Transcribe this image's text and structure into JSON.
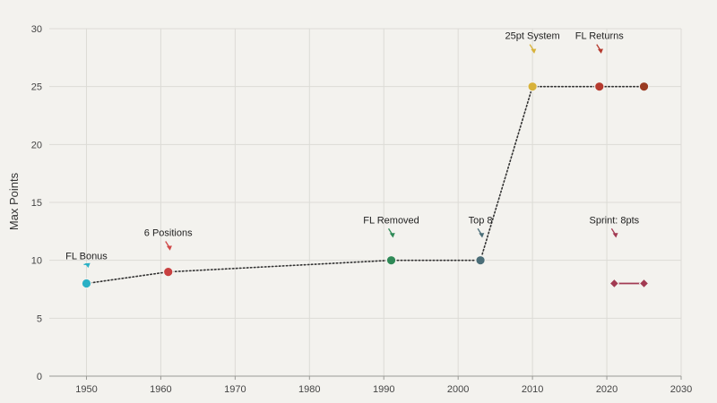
{
  "chart_data": {
    "type": "line",
    "xlabel": "",
    "ylabel": "Max Points",
    "xlim": [
      1945,
      2030
    ],
    "ylim": [
      0,
      30
    ],
    "xticks": [
      1950,
      1960,
      1970,
      1980,
      1990,
      2000,
      2010,
      2020,
      2030
    ],
    "yticks": [
      0,
      5,
      10,
      15,
      20,
      25,
      30
    ],
    "grid": true,
    "legend": "none",
    "series": [
      {
        "line_style": "dotted",
        "line_color": "#333333",
        "marker": "circle",
        "points": [
          {
            "x": 1950,
            "y": 8,
            "color": "#2ab0c5"
          },
          {
            "x": 1961,
            "y": 9,
            "color": "#c84040"
          },
          {
            "x": 1991,
            "y": 10,
            "color": "#2f8a57"
          },
          {
            "x": 2003,
            "y": 10,
            "color": "#4b6e78"
          },
          {
            "x": 2010,
            "y": 25,
            "color": "#d8b23a"
          },
          {
            "x": 2019,
            "y": 25,
            "color": "#b53a2e"
          },
          {
            "x": 2025,
            "y": 25,
            "color": "#9a3b22"
          }
        ]
      },
      {
        "line_style": "solid",
        "line_color": "#a23a52",
        "marker": "diamond",
        "points": [
          {
            "x": 2021,
            "y": 8,
            "color": "#a23a52"
          },
          {
            "x": 2025,
            "y": 8,
            "color": "#a23a52"
          }
        ]
      }
    ],
    "annotations": [
      {
        "text": "FL Bonus",
        "x": 1950,
        "y": 10.1,
        "arrow_to_y": 9.5,
        "color": "#2ab0c5"
      },
      {
        "text": "6 Positions",
        "x": 1961,
        "y": 12.1,
        "arrow_to_y": 11.0,
        "color": "#d04848"
      },
      {
        "text": "FL Removed",
        "x": 1991,
        "y": 13.2,
        "arrow_to_y": 12.1,
        "color": "#2f8a57"
      },
      {
        "text": "Top 8",
        "x": 2003,
        "y": 13.2,
        "arrow_to_y": 12.1,
        "color": "#4b6e78"
      },
      {
        "text": "25pt System",
        "x": 2010,
        "y": 29.1,
        "arrow_to_y": 28.0,
        "color": "#d8b23a"
      },
      {
        "text": "FL Returns",
        "x": 2019,
        "y": 29.1,
        "arrow_to_y": 28.0,
        "color": "#b53a2e"
      },
      {
        "text": "Sprint: 8pts",
        "x": 2021,
        "y": 13.2,
        "arrow_to_y": 12.1,
        "color": "#a23a52"
      }
    ]
  }
}
